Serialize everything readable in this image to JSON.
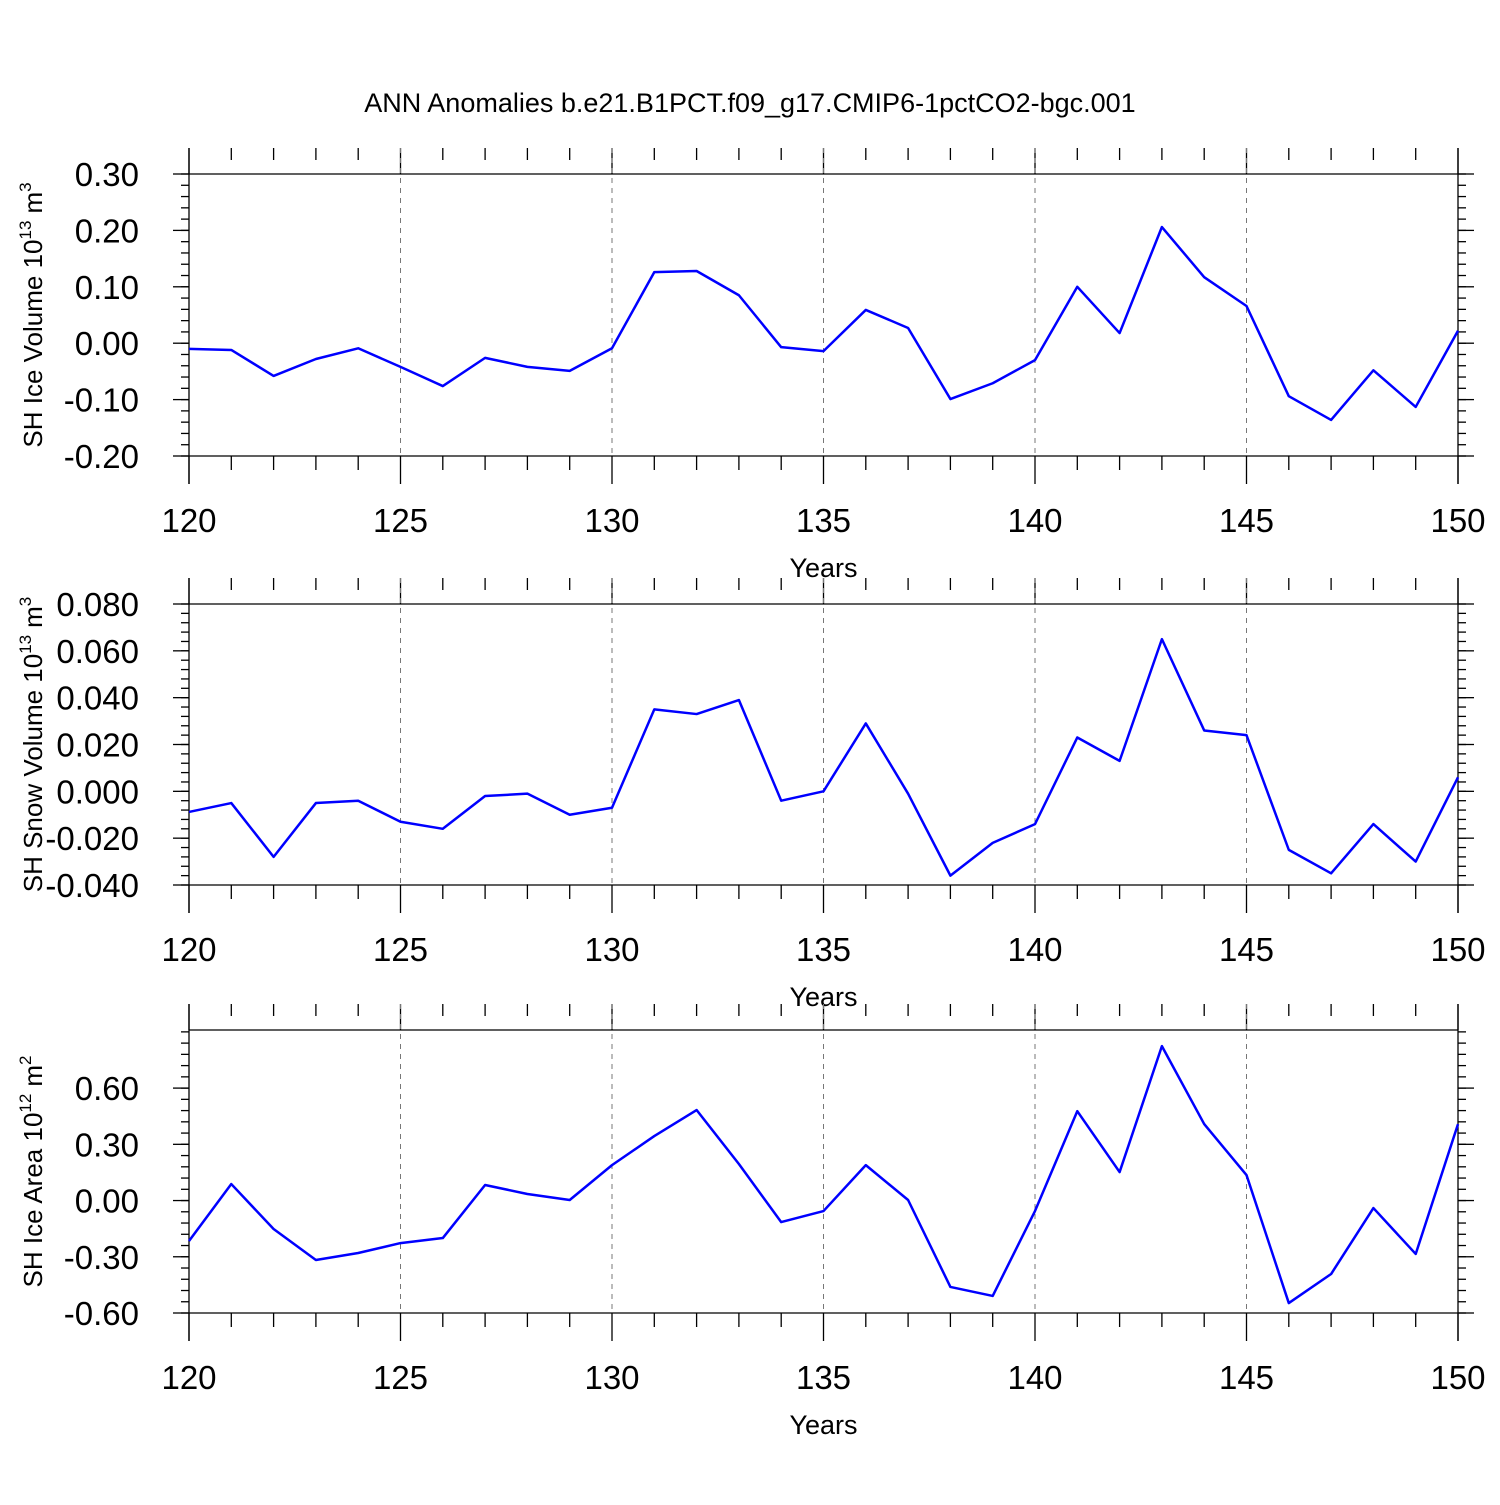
{
  "chart_data": [
    {
      "type": "line",
      "title": "ANN Anomalies b.e21.B1PCT.f09_g17.CMIP6-1pctCO2-bgc.001",
      "xlabel": "Years",
      "ylabel": [
        "SH Ice Volume 10",
        "13",
        "m",
        "3"
      ],
      "xlim": [
        120,
        150
      ],
      "xticks": [
        120,
        125,
        130,
        135,
        140,
        145,
        150
      ],
      "grid": true,
      "ylim": [
        -0.2,
        0.3
      ],
      "yticks": [
        {
          "value": -0.2,
          "label": "-0.20"
        },
        {
          "value": -0.1,
          "label": "-0.10"
        },
        {
          "value": 0,
          "label": "0.00"
        },
        {
          "value": 0.1,
          "label": "0.10"
        },
        {
          "value": 0.2,
          "label": "0.20"
        },
        {
          "value": 0.3,
          "label": "0.30"
        }
      ],
      "x": [
        120,
        121,
        122,
        123,
        124,
        125,
        126,
        127,
        128,
        129,
        130,
        131,
        132,
        133,
        134,
        135,
        136,
        137,
        138,
        139,
        140,
        141,
        142,
        143,
        144,
        145,
        146,
        147,
        148,
        149,
        150
      ],
      "series": [
        {
          "color": "#0000ff",
          "values": [
            -0.01,
            -0.012,
            -0.058,
            -0.028,
            -0.009,
            -0.042,
            -0.076,
            -0.026,
            -0.042,
            -0.049,
            -0.009,
            0.126,
            0.128,
            0.085,
            -0.007,
            -0.014,
            0.059,
            0.027,
            -0.099,
            -0.071,
            -0.03,
            0.1,
            0.018,
            0.206,
            0.117,
            0.066,
            -0.094,
            -0.136,
            -0.048,
            -0.113,
            0.022
          ]
        }
      ]
    },
    {
      "type": "line",
      "xlabel": "Years",
      "ylabel": [
        "SH Snow Volume 10",
        "13",
        "m",
        "3"
      ],
      "xlim": [
        120,
        150
      ],
      "xticks": [
        120,
        125,
        130,
        135,
        140,
        145,
        150
      ],
      "grid": true,
      "ylim": [
        -0.04,
        0.08
      ],
      "yticks": [
        {
          "value": -0.04,
          "label": "-0.040"
        },
        {
          "value": -0.02,
          "label": "-0.020"
        },
        {
          "value": 0,
          "label": "0.000"
        },
        {
          "value": 0.02,
          "label": "0.020"
        },
        {
          "value": 0.04,
          "label": "0.040"
        },
        {
          "value": 0.06,
          "label": "0.060"
        },
        {
          "value": 0.08,
          "label": "0.080"
        }
      ],
      "x": [
        120,
        121,
        122,
        123,
        124,
        125,
        126,
        127,
        128,
        129,
        130,
        131,
        132,
        133,
        134,
        135,
        136,
        137,
        138,
        139,
        140,
        141,
        142,
        143,
        144,
        145,
        146,
        147,
        148,
        149,
        150
      ],
      "series": [
        {
          "color": "#0000ff",
          "values": [
            -0.0088,
            -0.005,
            -0.028,
            -0.005,
            -0.004,
            -0.013,
            -0.016,
            -0.002,
            -0.001,
            -0.01,
            -0.007,
            0.035,
            0.033,
            0.039,
            -0.004,
            0.0,
            0.029,
            -0.001,
            -0.036,
            -0.022,
            -0.014,
            0.023,
            0.013,
            0.065,
            0.026,
            0.024,
            -0.025,
            -0.035,
            -0.014,
            -0.03,
            0.006
          ]
        }
      ]
    },
    {
      "type": "line",
      "xlabel": "Years",
      "ylabel": [
        "SH Ice Area 10",
        "12",
        "m",
        "2"
      ],
      "xlim": [
        120,
        150
      ],
      "xticks": [
        120,
        125,
        130,
        135,
        140,
        145,
        150
      ],
      "grid": true,
      "ylim": [
        -0.6,
        0.91
      ],
      "yticks": [
        {
          "value": -0.6,
          "label": "-0.60"
        },
        {
          "value": -0.3,
          "label": "-0.30"
        },
        {
          "value": 0,
          "label": "0.00"
        },
        {
          "value": 0.3,
          "label": "0.30"
        },
        {
          "value": 0.6,
          "label": "0.60"
        }
      ],
      "x": [
        120,
        121,
        122,
        123,
        124,
        125,
        126,
        127,
        128,
        129,
        130,
        131,
        132,
        133,
        134,
        135,
        136,
        137,
        138,
        139,
        140,
        141,
        142,
        143,
        144,
        145,
        146,
        147,
        148,
        149,
        150
      ],
      "series": [
        {
          "color": "#0000ff",
          "values": [
            -0.216,
            0.088,
            -0.152,
            -0.317,
            -0.28,
            -0.227,
            -0.2,
            0.083,
            0.035,
            0.003,
            0.189,
            0.344,
            0.483,
            0.195,
            -0.115,
            -0.056,
            0.189,
            0.003,
            -0.461,
            -0.509,
            -0.056,
            0.477,
            0.152,
            0.824,
            0.408,
            0.136,
            -0.547,
            -0.392,
            -0.04,
            -0.285,
            0.408
          ]
        }
      ]
    }
  ]
}
